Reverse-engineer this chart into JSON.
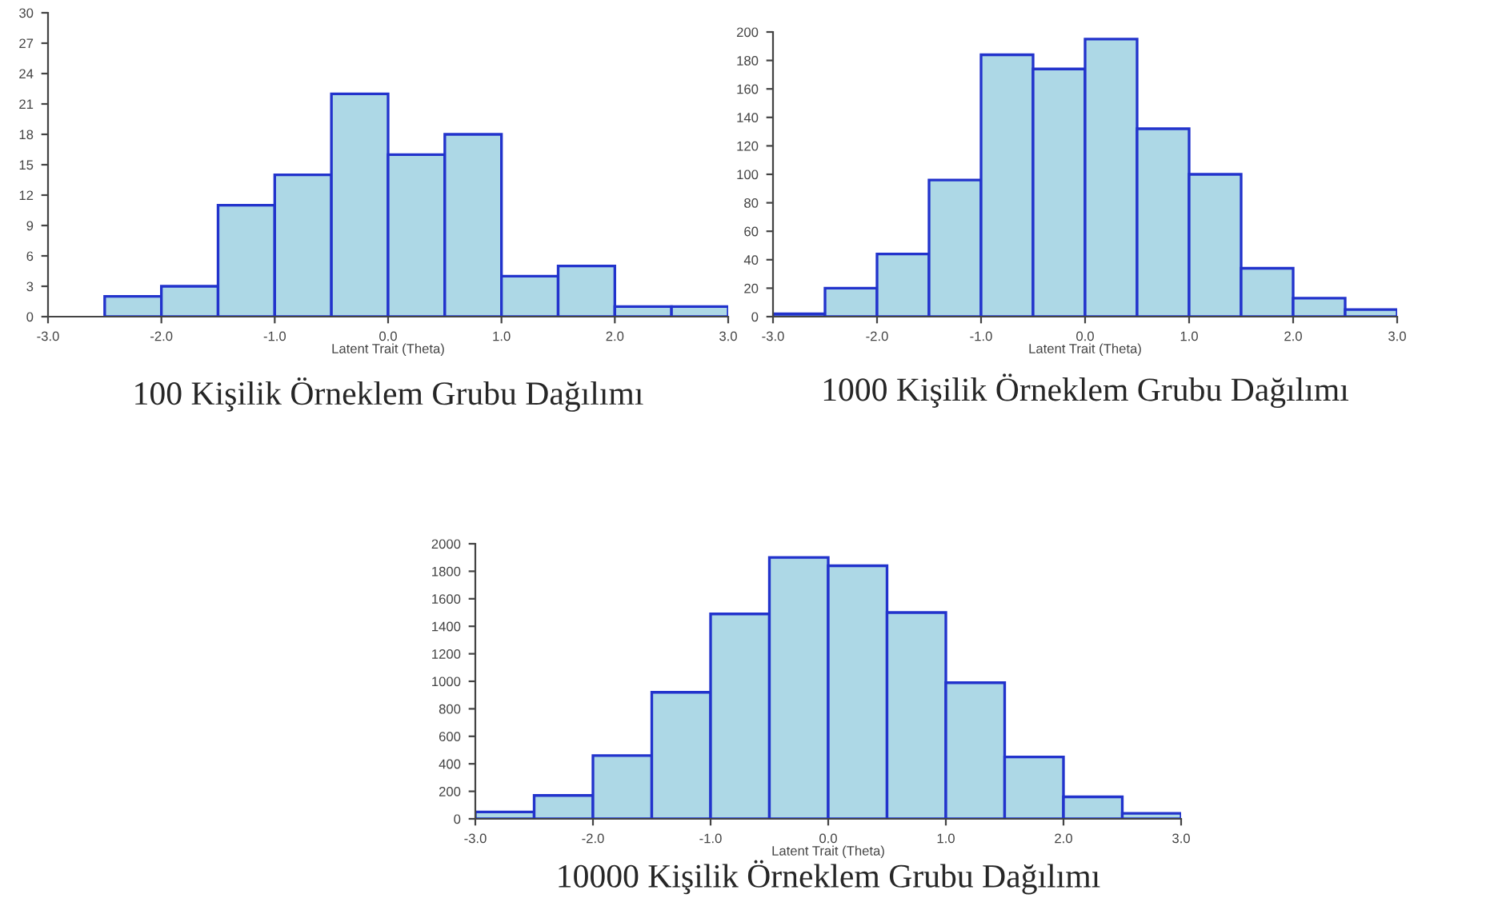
{
  "chart_data": [
    {
      "type": "histogram",
      "title": "100 Kişilik Örneklem Grubu Dağılımı",
      "xlabel": "Latent Trait (Theta)",
      "bins": [
        -3.0,
        -2.5,
        -2.0,
        -1.5,
        -1.0,
        -0.5,
        0.0,
        0.5,
        1.0,
        1.5,
        2.0,
        2.5,
        3.0
      ],
      "values": [
        0,
        2,
        3,
        11,
        14,
        22,
        16,
        18,
        4,
        5,
        1,
        1
      ],
      "color": "#add8e6",
      "xlim": [
        -3.0,
        3.0
      ],
      "xticks": [
        {
          "value": -3,
          "label": "-3.0"
        },
        {
          "value": -2,
          "label": "-2.0"
        },
        {
          "value": -1,
          "label": "-1.0"
        },
        {
          "value": 0,
          "label": "0.0"
        },
        {
          "value": 1,
          "label": "1.0"
        },
        {
          "value": 2,
          "label": "2.0"
        },
        {
          "value": 3,
          "label": "3.0"
        }
      ],
      "ylim": [
        0,
        30
      ],
      "yticks": [
        0,
        3,
        6,
        9,
        12,
        15,
        18,
        21,
        24,
        27,
        30
      ],
      "grid": false
    },
    {
      "type": "histogram",
      "title": "1000 Kişilik Örneklem Grubu Dağılımı",
      "xlabel": "Latent Trait (Theta)",
      "bins": [
        -3.0,
        -2.5,
        -2.0,
        -1.5,
        -1.0,
        -0.5,
        0.0,
        0.5,
        1.0,
        1.5,
        2.0,
        2.5,
        3.0
      ],
      "values": [
        2,
        20,
        44,
        96,
        184,
        174,
        195,
        132,
        100,
        34,
        13,
        5
      ],
      "color": "#add8e6",
      "xlim": [
        -3.0,
        3.0
      ],
      "xticks": [
        {
          "value": -3,
          "label": "-3.0"
        },
        {
          "value": -2,
          "label": "-2.0"
        },
        {
          "value": -1,
          "label": "-1.0"
        },
        {
          "value": 0,
          "label": "0.0"
        },
        {
          "value": 1,
          "label": "1.0"
        },
        {
          "value": 2,
          "label": "2.0"
        },
        {
          "value": 3,
          "label": "3.0"
        }
      ],
      "ylim": [
        0,
        200
      ],
      "yticks": [
        0,
        20,
        40,
        60,
        80,
        100,
        120,
        140,
        160,
        180,
        200
      ],
      "grid": false
    },
    {
      "type": "histogram",
      "title": "10000 Kişilik Örneklem Grubu Dağılımı",
      "xlabel": "Latent Trait (Theta)",
      "bins": [
        -3.0,
        -2.5,
        -2.0,
        -1.5,
        -1.0,
        -0.5,
        0.0,
        0.5,
        1.0,
        1.5,
        2.0,
        2.5,
        3.0
      ],
      "values": [
        50,
        170,
        460,
        920,
        1490,
        1900,
        1840,
        1500,
        990,
        450,
        160,
        40
      ],
      "color": "#add8e6",
      "xlim": [
        -3.0,
        3.0
      ],
      "xticks": [
        {
          "value": -3,
          "label": "-3.0"
        },
        {
          "value": -2,
          "label": "-2.0"
        },
        {
          "value": -1,
          "label": "-1.0"
        },
        {
          "value": 0,
          "label": "0.0"
        },
        {
          "value": 1,
          "label": "1.0"
        },
        {
          "value": 2,
          "label": "2.0"
        },
        {
          "value": 3,
          "label": "3.0"
        }
      ],
      "ylim": [
        0,
        2000
      ],
      "yticks": [
        0,
        200,
        400,
        600,
        800,
        1000,
        1200,
        1400,
        1600,
        1800,
        2000
      ],
      "grid": false
    }
  ]
}
